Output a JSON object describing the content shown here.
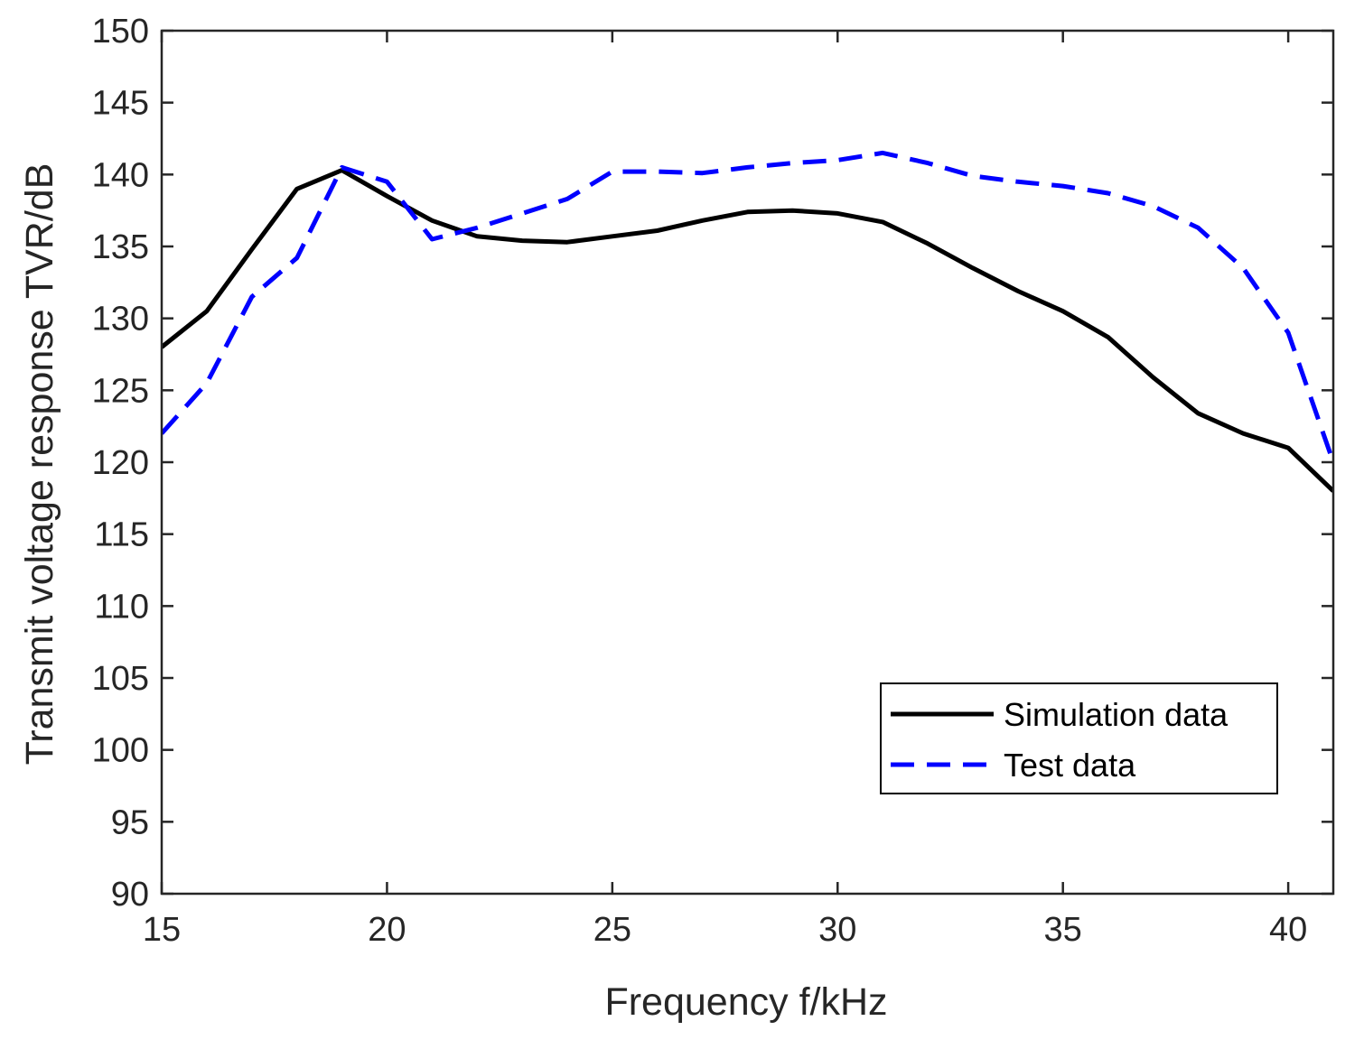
{
  "chart_data": {
    "type": "line",
    "title": "",
    "xlabel": "Frequency f/kHz",
    "ylabel": "Transmit voltage response TVR/dB",
    "xlim": [
      15,
      41
    ],
    "ylim": [
      90,
      150
    ],
    "xticks": [
      15,
      20,
      25,
      30,
      35,
      40
    ],
    "yticks": [
      90,
      95,
      100,
      105,
      110,
      115,
      120,
      125,
      130,
      135,
      140,
      145,
      150
    ],
    "grid": false,
    "legend_position": "bottom-right",
    "series": [
      {
        "name": "Simulation data",
        "color": "#000000",
        "style": "solid",
        "x": [
          15,
          16,
          17,
          18,
          19,
          20,
          21,
          22,
          23,
          24,
          25,
          26,
          27,
          28,
          29,
          30,
          31,
          32,
          33,
          34,
          35,
          36,
          37,
          38,
          39,
          40,
          41
        ],
        "y": [
          128,
          130.5,
          134.8,
          139,
          140.3,
          138.5,
          136.8,
          135.7,
          135.4,
          135.3,
          135.7,
          136.1,
          136.8,
          137.4,
          137.5,
          137.3,
          136.7,
          135.2,
          133.5,
          131.9,
          130.5,
          128.7,
          125.9,
          123.4,
          122,
          121,
          118
        ]
      },
      {
        "name": "Test data",
        "color": "#0000ff",
        "style": "dashed",
        "x": [
          15,
          16,
          17,
          18,
          19,
          20,
          21,
          22,
          23,
          24,
          25,
          26,
          27,
          28,
          29,
          30,
          31,
          32,
          33,
          34,
          35,
          36,
          37,
          38,
          39,
          40,
          41
        ],
        "y": [
          122,
          125.5,
          131.5,
          134.2,
          140.5,
          139.5,
          135.5,
          136.3,
          137.3,
          138.3,
          140.2,
          140.2,
          140.1,
          140.5,
          140.8,
          141,
          141.5,
          140.8,
          139.9,
          139.5,
          139.2,
          138.7,
          137.8,
          136.3,
          133.5,
          129,
          120
        ]
      }
    ]
  }
}
